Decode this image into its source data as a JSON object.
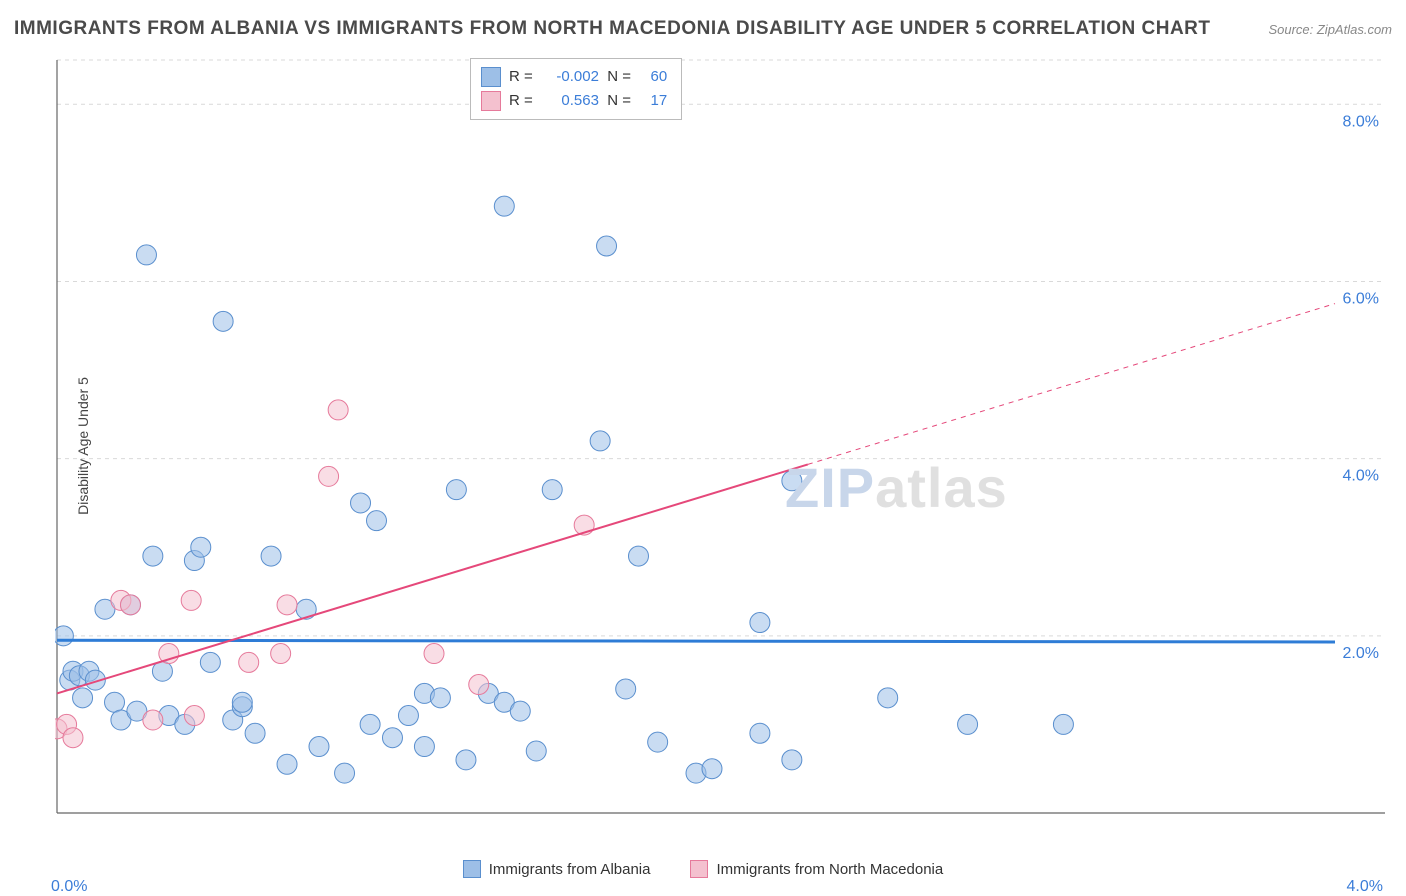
{
  "title": "IMMIGRANTS FROM ALBANIA VS IMMIGRANTS FROM NORTH MACEDONIA DISABILITY AGE UNDER 5 CORRELATION CHART",
  "source": "Source: ZipAtlas.com",
  "watermark_a": "ZIP",
  "watermark_b": "atlas",
  "y_axis_label": "Disability Age Under 5",
  "chart": {
    "type": "scatter",
    "background_color": "#ffffff",
    "grid_color": "#d9d9d9",
    "axis_color": "#666666",
    "tick_label_color": "#3b7dd8",
    "tick_fontsize": 16,
    "title_fontsize": 19,
    "xlim": [
      0.0,
      4.0
    ],
    "ylim": [
      0.0,
      8.5
    ],
    "y_ticks": [
      2.0,
      4.0,
      6.0,
      8.0
    ],
    "y_tick_labels": [
      "2.0%",
      "4.0%",
      "6.0%",
      "8.0%"
    ],
    "x_ticks": [
      0.0,
      4.0
    ],
    "x_tick_labels": [
      "0.0%",
      "4.0%"
    ],
    "marker_radius": 10,
    "marker_opacity": 0.55,
    "series": [
      {
        "name": "Immigrants from Albania",
        "fill_color": "#9dbfe7",
        "stroke_color": "#5a8fce",
        "r_value": "-0.002",
        "n_value": "60",
        "trend": {
          "y_intercept": 1.95,
          "slope": -0.005,
          "color": "#2e7cd6",
          "width": 3,
          "dash": "none"
        },
        "points": [
          [
            0.02,
            2.0
          ],
          [
            0.04,
            1.5
          ],
          [
            0.05,
            1.6
          ],
          [
            0.07,
            1.55
          ],
          [
            0.08,
            1.3
          ],
          [
            0.1,
            1.6
          ],
          [
            0.12,
            1.5
          ],
          [
            0.15,
            2.3
          ],
          [
            0.18,
            1.25
          ],
          [
            0.2,
            1.05
          ],
          [
            0.23,
            2.35
          ],
          [
            0.25,
            1.15
          ],
          [
            0.28,
            6.3
          ],
          [
            0.3,
            2.9
          ],
          [
            0.33,
            1.6
          ],
          [
            0.35,
            1.1
          ],
          [
            0.4,
            1.0
          ],
          [
            0.43,
            2.85
          ],
          [
            0.45,
            3.0
          ],
          [
            0.48,
            1.7
          ],
          [
            0.52,
            5.55
          ],
          [
            0.55,
            1.05
          ],
          [
            0.58,
            1.2
          ],
          [
            0.58,
            1.25
          ],
          [
            0.62,
            0.9
          ],
          [
            0.67,
            2.9
          ],
          [
            0.72,
            0.55
          ],
          [
            0.78,
            2.3
          ],
          [
            0.82,
            0.75
          ],
          [
            0.9,
            0.45
          ],
          [
            0.95,
            3.5
          ],
          [
            0.98,
            1.0
          ],
          [
            1.0,
            3.3
          ],
          [
            1.05,
            0.85
          ],
          [
            1.1,
            1.1
          ],
          [
            1.15,
            0.75
          ],
          [
            1.15,
            1.35
          ],
          [
            1.2,
            1.3
          ],
          [
            1.25,
            3.65
          ],
          [
            1.28,
            0.6
          ],
          [
            1.35,
            1.35
          ],
          [
            1.4,
            1.25
          ],
          [
            1.4,
            6.85
          ],
          [
            1.45,
            1.15
          ],
          [
            1.5,
            0.7
          ],
          [
            1.55,
            3.65
          ],
          [
            1.7,
            4.2
          ],
          [
            1.72,
            6.4
          ],
          [
            1.78,
            1.4
          ],
          [
            1.82,
            2.9
          ],
          [
            1.88,
            0.8
          ],
          [
            2.0,
            0.45
          ],
          [
            2.05,
            0.5
          ],
          [
            2.2,
            0.9
          ],
          [
            2.2,
            2.15
          ],
          [
            2.3,
            3.75
          ],
          [
            2.3,
            0.6
          ],
          [
            2.6,
            1.3
          ],
          [
            2.85,
            1.0
          ],
          [
            3.15,
            1.0
          ]
        ]
      },
      {
        "name": "Immigrants from North Macedonia",
        "fill_color": "#f4c1cf",
        "stroke_color": "#e67a9b",
        "r_value": "0.563",
        "n_value": "17",
        "trend": {
          "y_intercept": 1.35,
          "slope": 1.1,
          "color": "#e5487a",
          "width": 2,
          "dash": "none",
          "extend_dash": "5,5"
        },
        "points": [
          [
            0.0,
            0.95
          ],
          [
            0.03,
            1.0
          ],
          [
            0.05,
            0.85
          ],
          [
            0.2,
            2.4
          ],
          [
            0.23,
            2.35
          ],
          [
            0.3,
            1.05
          ],
          [
            0.35,
            1.8
          ],
          [
            0.42,
            2.4
          ],
          [
            0.43,
            1.1
          ],
          [
            0.6,
            1.7
          ],
          [
            0.7,
            1.8
          ],
          [
            0.72,
            2.35
          ],
          [
            0.85,
            3.8
          ],
          [
            0.88,
            4.55
          ],
          [
            1.18,
            1.8
          ],
          [
            1.32,
            1.45
          ],
          [
            1.65,
            3.25
          ]
        ]
      }
    ]
  },
  "legend_bottom": [
    {
      "label": "Immigrants from Albania",
      "fill": "#9dbfe7",
      "stroke": "#5a8fce"
    },
    {
      "label": "Immigrants from North Macedonia",
      "fill": "#f4c1cf",
      "stroke": "#e67a9b"
    }
  ]
}
